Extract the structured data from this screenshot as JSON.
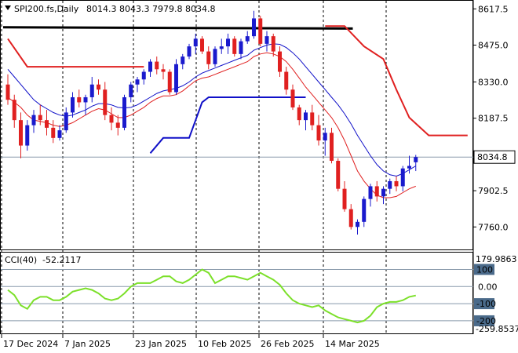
{
  "chart_data": [
    {
      "type": "candlestick",
      "title": "SPI200.fs,Daily",
      "ohlc_readout": [
        "8014.3",
        "8043.3",
        "7979.8",
        "8034.8"
      ],
      "ylim": [
        7690,
        8640
      ],
      "price_ticks": [
        "8617.5",
        "8475.0",
        "8330.0",
        "8187.5",
        "7902.5",
        "7760.0"
      ],
      "last_price": "8034.8",
      "x_ticks": [
        "17 Dec 2024",
        "7 Jan 2025",
        "23 Jan 2025",
        "10 Feb 2025",
        "26 Feb 2025",
        "14 Mar 2025"
      ],
      "candles": [
        [
          8320,
          8360,
          8240,
          8260
        ],
        [
          8260,
          8280,
          8150,
          8180
        ],
        [
          8180,
          8210,
          8030,
          8080
        ],
        [
          8080,
          8180,
          8060,
          8160
        ],
        [
          8160,
          8220,
          8130,
          8200
        ],
        [
          8200,
          8240,
          8160,
          8180
        ],
        [
          8180,
          8220,
          8120,
          8150
        ],
        [
          8150,
          8180,
          8090,
          8110
        ],
        [
          8110,
          8160,
          8100,
          8140
        ],
        [
          8140,
          8230,
          8130,
          8210
        ],
        [
          8210,
          8290,
          8190,
          8270
        ],
        [
          8270,
          8300,
          8230,
          8250
        ],
        [
          8250,
          8280,
          8200,
          8270
        ],
        [
          8270,
          8350,
          8250,
          8320
        ],
        [
          8320,
          8340,
          8280,
          8300
        ],
        [
          8300,
          8330,
          8180,
          8200
        ],
        [
          8200,
          8230,
          8140,
          8170
        ],
        [
          8170,
          8200,
          8120,
          8150
        ],
        [
          8150,
          8280,
          8140,
          8270
        ],
        [
          8270,
          8330,
          8250,
          8320
        ],
        [
          8320,
          8350,
          8290,
          8340
        ],
        [
          8340,
          8380,
          8320,
          8370
        ],
        [
          8370,
          8420,
          8350,
          8410
        ],
        [
          8410,
          8430,
          8360,
          8380
        ],
        [
          8380,
          8400,
          8340,
          8370
        ],
        [
          8370,
          8380,
          8280,
          8290
        ],
        [
          8290,
          8420,
          8280,
          8400
        ],
        [
          8400,
          8440,
          8380,
          8430
        ],
        [
          8430,
          8480,
          8420,
          8470
        ],
        [
          8470,
          8520,
          8440,
          8500
        ],
        [
          8500,
          8510,
          8440,
          8450
        ],
        [
          8450,
          8470,
          8380,
          8400
        ],
        [
          8400,
          8470,
          8390,
          8460
        ],
        [
          8460,
          8500,
          8440,
          8470
        ],
        [
          8470,
          8520,
          8440,
          8500
        ],
        [
          8500,
          8510,
          8430,
          8440
        ],
        [
          8440,
          8500,
          8420,
          8490
        ],
        [
          8490,
          8530,
          8480,
          8510
        ],
        [
          8510,
          8610,
          8500,
          8580
        ],
        [
          8580,
          8590,
          8470,
          8480
        ],
        [
          8480,
          8530,
          8450,
          8510
        ],
        [
          8510,
          8520,
          8430,
          8450
        ],
        [
          8450,
          8470,
          8350,
          8370
        ],
        [
          8370,
          8390,
          8280,
          8300
        ],
        [
          8300,
          8320,
          8220,
          8230
        ],
        [
          8230,
          8240,
          8160,
          8180
        ],
        [
          8180,
          8220,
          8140,
          8210
        ],
        [
          8210,
          8240,
          8140,
          8160
        ],
        [
          8160,
          8200,
          8080,
          8100
        ],
        [
          8100,
          8150,
          8040,
          8130
        ],
        [
          8130,
          8150,
          8010,
          8020
        ],
        [
          8020,
          8030,
          7900,
          7910
        ],
        [
          7910,
          7940,
          7820,
          7830
        ],
        [
          7830,
          7850,
          7750,
          7760
        ],
        [
          7760,
          7790,
          7730,
          7780
        ],
        [
          7780,
          7880,
          7760,
          7870
        ],
        [
          7870,
          7930,
          7840,
          7920
        ],
        [
          7920,
          7940,
          7860,
          7880
        ],
        [
          7880,
          7920,
          7850,
          7910
        ],
        [
          7910,
          7950,
          7890,
          7940
        ],
        [
          7940,
          7960,
          7900,
          7920
        ],
        [
          7920,
          8000,
          7900,
          7990
        ],
        [
          7990,
          8040,
          7970,
          8000
        ],
        [
          8014.3,
          8043.3,
          7979.8,
          8034.8
        ]
      ],
      "ma_fast": [
        8270,
        8250,
        8230,
        8200,
        8180,
        8175,
        8170,
        8160,
        8155,
        8160,
        8170,
        8185,
        8200,
        8215,
        8225,
        8220,
        8205,
        8190,
        8190,
        8200,
        8215,
        8230,
        8250,
        8265,
        8275,
        8275,
        8280,
        8295,
        8315,
        8335,
        8345,
        8350,
        8360,
        8370,
        8380,
        8390,
        8400,
        8410,
        8430,
        8440,
        8445,
        8440,
        8430,
        8410,
        8380,
        8345,
        8310,
        8280,
        8250,
        8220,
        8190,
        8150,
        8100,
        8040,
        7980,
        7940,
        7910,
        7885,
        7875,
        7875,
        7880,
        7895,
        7910,
        7920
      ],
      "ma_slow": [
        8380,
        8350,
        8320,
        8290,
        8260,
        8240,
        8225,
        8210,
        8200,
        8195,
        8200,
        8210,
        8220,
        8235,
        8245,
        8245,
        8240,
        8230,
        8228,
        8230,
        8240,
        8255,
        8270,
        8285,
        8295,
        8300,
        8305,
        8315,
        8330,
        8350,
        8365,
        8375,
        8385,
        8395,
        8405,
        8415,
        8425,
        8435,
        8455,
        8465,
        8475,
        8480,
        8478,
        8465,
        8445,
        8420,
        8390,
        8360,
        8330,
        8300,
        8270,
        8240,
        8205,
        8165,
        8120,
        8080,
        8040,
        8005,
        7980,
        7965,
        7960,
        7970,
        7985,
        8000
      ],
      "resistance_black": [
        [
          0,
          8545
        ],
        [
          54,
          8540
        ]
      ],
      "stop_red": [
        [
          0,
          8500
        ],
        [
          3,
          8390
        ],
        [
          21,
          8390
        ]
      ],
      "stop_red_2": [
        [
          49,
          8550
        ],
        [
          52,
          8550
        ],
        [
          55,
          8470
        ],
        [
          58,
          8420
        ],
        [
          60,
          8300
        ],
        [
          62,
          8190
        ],
        [
          65,
          8120
        ],
        [
          71,
          8120
        ]
      ],
      "stop_blue": [
        [
          22,
          8050
        ],
        [
          24,
          8110
        ],
        [
          28,
          8110
        ],
        [
          30,
          8250
        ],
        [
          31,
          8270
        ],
        [
          46,
          8270
        ]
      ],
      "cci": {
        "label": "CCI(40)",
        "value": "-52.2117",
        "ylim": [
          -259.8537,
          179.9863
        ],
        "levels": [
          "100",
          "0.00",
          "-100",
          "-200"
        ],
        "level_values": [
          100,
          0,
          -100,
          -200
        ],
        "range_labels": [
          "179.9863",
          "-259.8537"
        ],
        "values": [
          -20,
          -50,
          -110,
          -130,
          -80,
          -60,
          -60,
          -80,
          -80,
          -60,
          -30,
          -20,
          -10,
          -20,
          -40,
          -70,
          -80,
          -70,
          -40,
          0,
          20,
          20,
          20,
          40,
          60,
          60,
          30,
          20,
          40,
          70,
          100,
          80,
          20,
          40,
          60,
          60,
          50,
          40,
          60,
          80,
          60,
          40,
          10,
          -40,
          -80,
          -100,
          -110,
          -120,
          -110,
          -140,
          -160,
          -180,
          -190,
          -200,
          -210,
          -200,
          -170,
          -120,
          -100,
          -90,
          -90,
          -80,
          -60,
          -52.2
        ]
      }
    }
  ]
}
